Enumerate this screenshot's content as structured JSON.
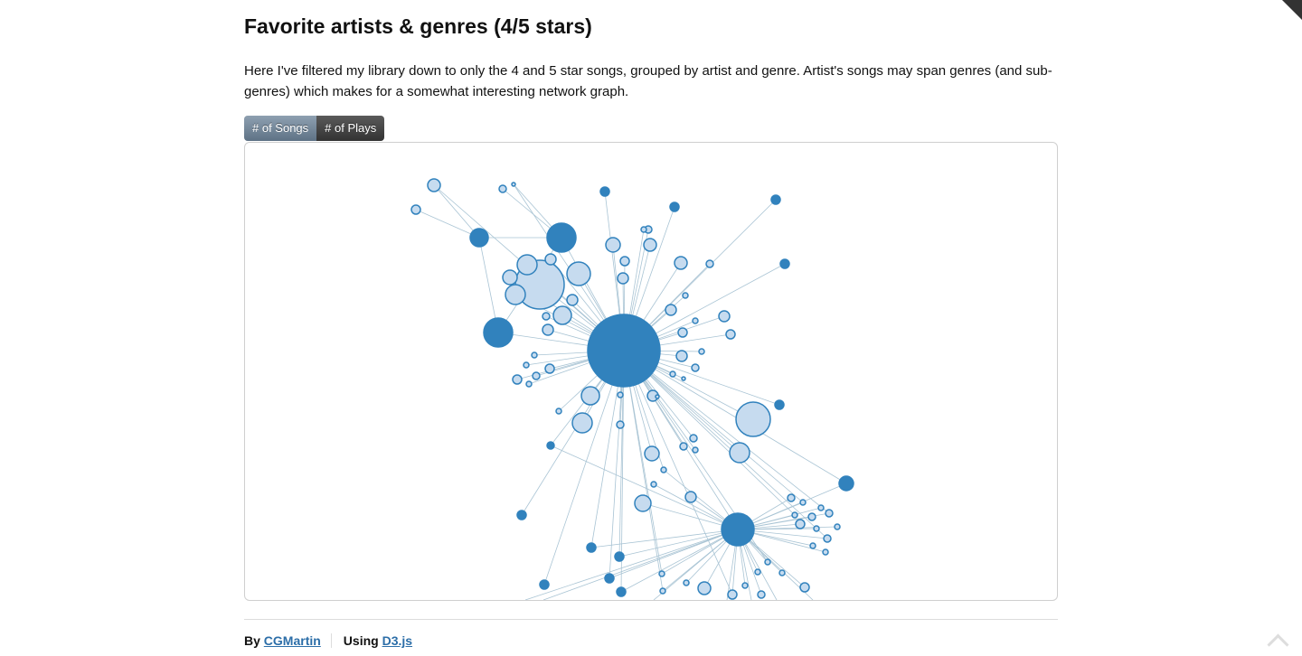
{
  "page": {
    "title": "Favorite artists & genres (4/5 stars)",
    "intro": "Here I've filtered my library down to only the 4 and 5 star songs, grouped by artist and genre. Artist's songs may span genres (and sub-genres) which makes for a somewhat interesting network graph."
  },
  "toggle": {
    "songs_label": "# of Songs",
    "plays_label": "# of Plays",
    "selected": "songs"
  },
  "footer": {
    "by_label": "By",
    "author_link": "CGMartin",
    "using_label": "Using",
    "library_link": "D3.js"
  },
  "colors": {
    "genre_fill": "#3182bd",
    "artist_fill": "#c6dbef",
    "node_stroke": "#3182bd",
    "link": "#a9c4d4",
    "button_active": "#6e8294",
    "button_inactive": "#444444",
    "link_text": "#2c6ea8"
  }
}
